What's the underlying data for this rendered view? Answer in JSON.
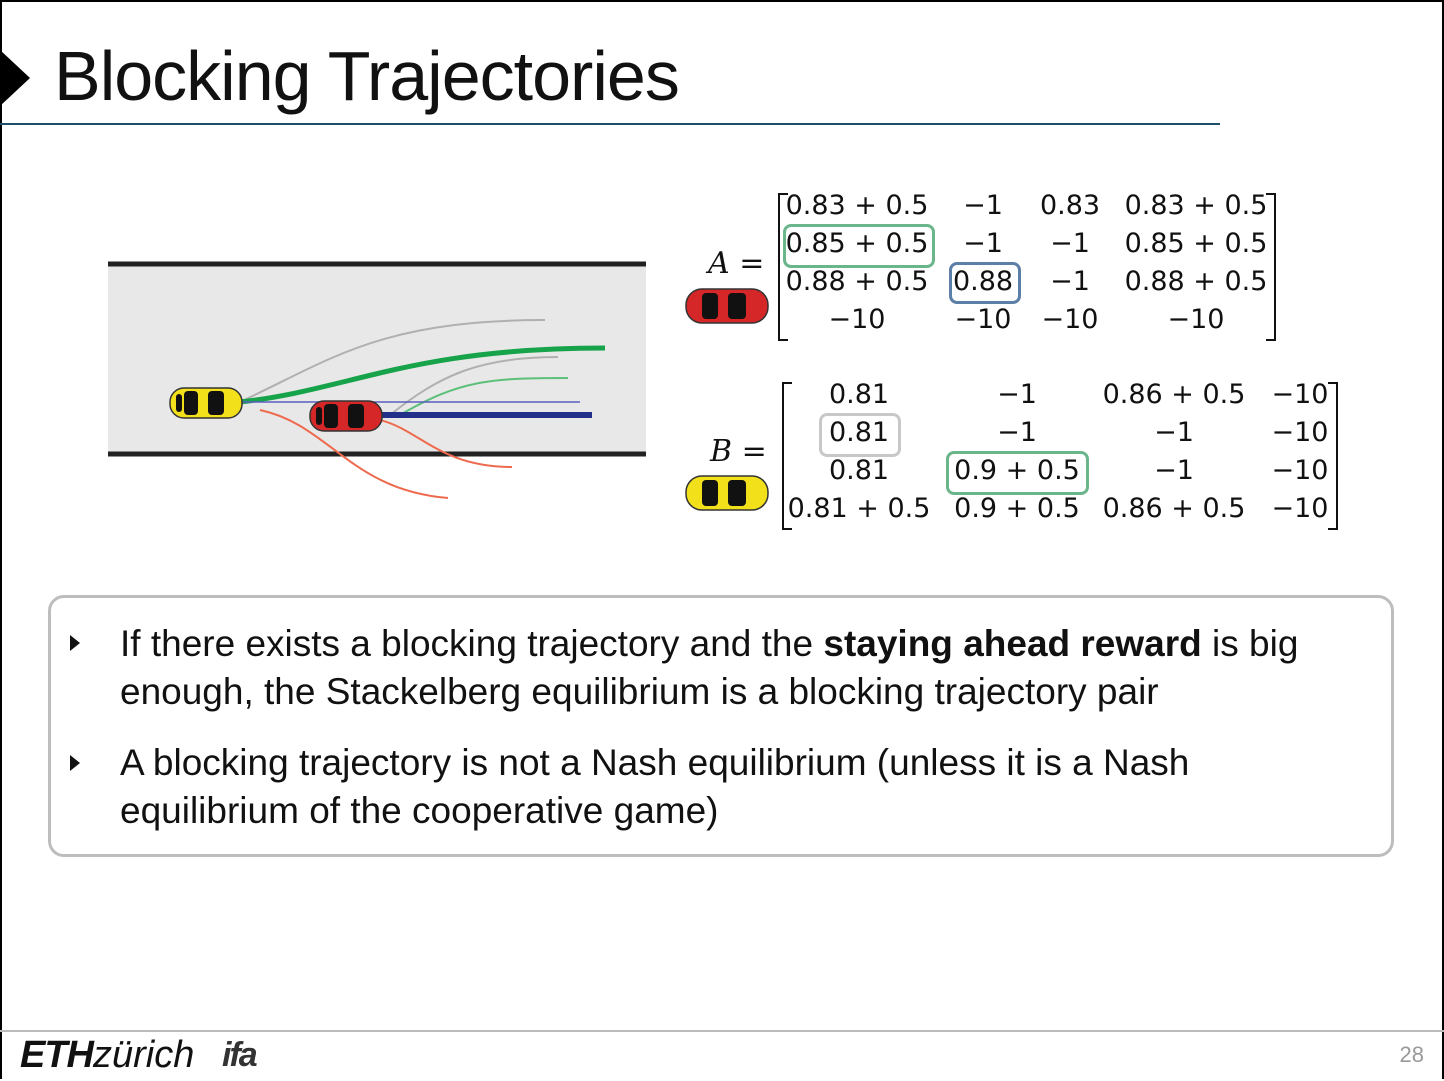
{
  "slide": {
    "title": "Blocking Trajectories",
    "page_number": "28"
  },
  "matrix_A": {
    "label": "A",
    "equals": "=",
    "rows": [
      [
        "0.83 + 0.5",
        "−1",
        "0.83",
        "0.83 + 0.5"
      ],
      [
        "0.85 + 0.5",
        "−1",
        "−1",
        "0.85 + 0.5"
      ],
      [
        "0.88 + 0.5",
        "0.88",
        "−1",
        "0.88 + 0.5"
      ],
      [
        "−10",
        "−10",
        "−10",
        "−10"
      ]
    ],
    "highlight_green": "0.85 + 0.5",
    "highlight_blue": "0.88",
    "car_color": "#d62728"
  },
  "matrix_B": {
    "label": "B",
    "equals": "=",
    "rows": [
      [
        "0.81",
        "−1",
        "0.86 + 0.5",
        "−10"
      ],
      [
        "0.81",
        "−1",
        "−1",
        "−10"
      ],
      [
        "0.81",
        "0.9 + 0.5",
        "−1",
        "−10"
      ],
      [
        "0.81 + 0.5",
        "0.9 + 0.5",
        "0.86 + 0.5",
        "−10"
      ]
    ],
    "highlight_gray": "0.81",
    "highlight_green": "0.9 + 0.5",
    "car_color": "#f2e01a"
  },
  "colors": {
    "green_box": "#6bb58a",
    "blue_box": "#5b7fa6",
    "gray_box": "#c8c8c8",
    "road": "#e8e8e8",
    "traj_green": "#17a34a",
    "traj_blue": "#23308a",
    "traj_red": "#ee6a4e",
    "traj_gray": "#b0b0b0"
  },
  "bullets": [
    {
      "pre": "If there exists a blocking trajectory and the ",
      "bold": "staying ahead reward",
      "post": " is big enough, the Stackelberg equilibrium is a blocking trajectory pair"
    },
    {
      "text": "A blocking trajectory is not a Nash equilibrium (unless it is a Nash equilibrium of the cooperative game)"
    }
  ],
  "footer": {
    "eth_bold": "ETH",
    "eth_rest": "zürich",
    "ifa": "ifa"
  }
}
